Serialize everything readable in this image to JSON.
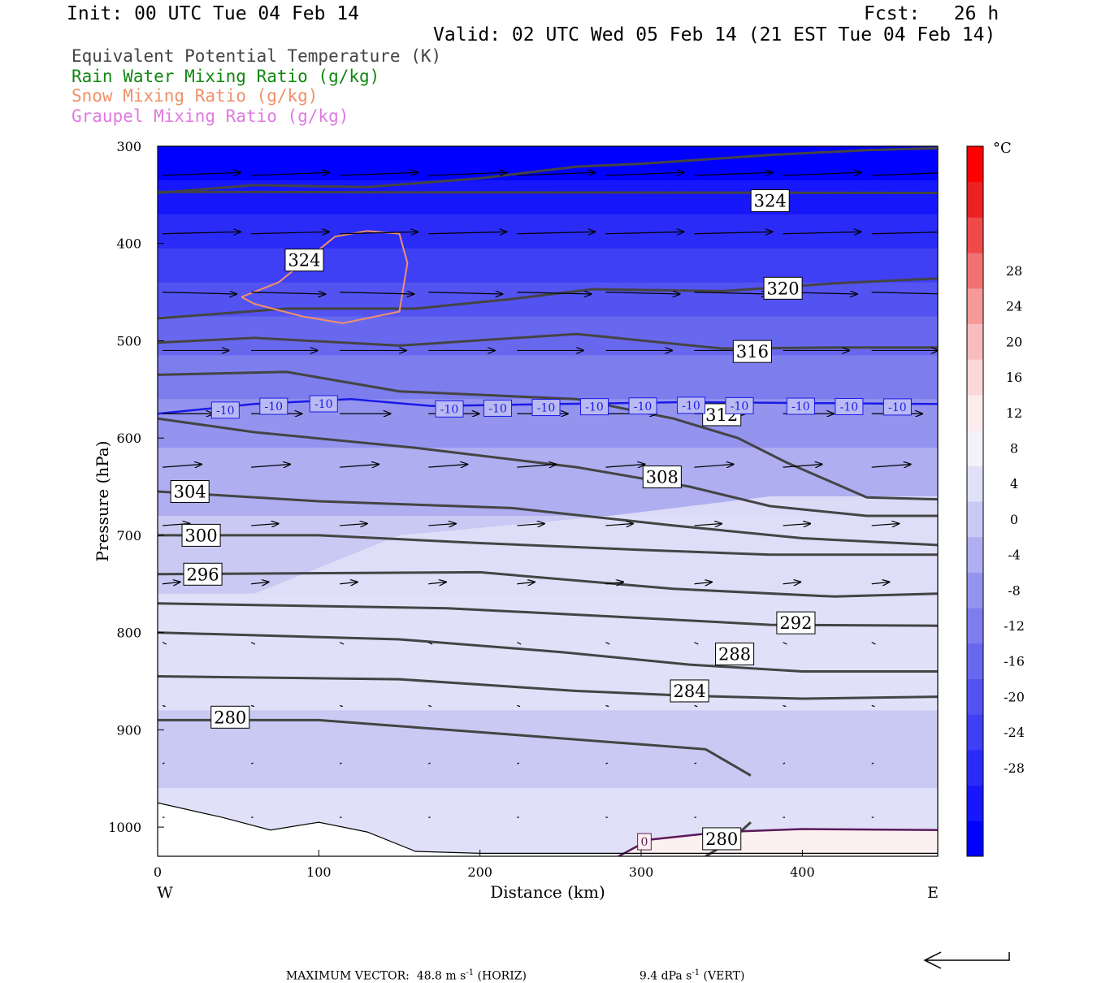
{
  "header": {
    "init": "Init: 00 UTC Tue 04 Feb 14",
    "fcst": "Fcst:   26 h",
    "valid": "Valid: 02 UTC Wed 05 Feb 14 (21 EST Tue 04 Feb 14)"
  },
  "legend": [
    {
      "label": "Equivalent Potential Temperature (K)",
      "color": "#444444"
    },
    {
      "label": "Rain Water Mixing Ratio (g/kg)",
      "color": "#118811"
    },
    {
      "label": "Snow Mixing Ratio (g/kg)",
      "color": "#f0906a"
    },
    {
      "label": "Graupel Mixing Ratio (g/kg)",
      "color": "#e07ae0"
    }
  ],
  "axes": {
    "ylabel": "Pressure (hPa)",
    "xlabel": "Distance (km)",
    "west": "W",
    "east": "E",
    "colorbar_unit": "°C"
  },
  "footer": {
    "max_vector": "MAXIMUM VECTOR:  48.8 m s",
    "horiz": " (HORIZ)",
    "vert_value": "9.4 dPa s",
    "vert": " (VERT)",
    "exp": "-1"
  },
  "chart_data": {
    "type": "cross-section",
    "x_unit": "km",
    "y_unit": "hPa",
    "xlim": [
      0,
      484
    ],
    "ylim": [
      1030,
      300
    ],
    "y_scale": "linear",
    "x_ticks": [
      0,
      100,
      200,
      300,
      400
    ],
    "y_ticks": [
      300,
      400,
      500,
      600,
      700,
      800,
      900,
      1000
    ],
    "temperature_fill": {
      "levels": [
        -32,
        -28,
        -24,
        -20,
        -16,
        -12,
        -8,
        -4,
        0,
        4,
        8,
        12,
        16,
        20,
        24,
        28,
        32
      ],
      "colorbar_ticks": [
        28,
        24,
        20,
        16,
        12,
        8,
        4,
        0,
        -4,
        -8,
        -12,
        -16,
        -20,
        -24,
        -28
      ],
      "colors": [
        "#0000ff",
        "#1717fb",
        "#2b2bf7",
        "#3f3ff4",
        "#5353f1",
        "#6868ef",
        "#7d7ded",
        "#9494ef",
        "#aeaef1",
        "#c9c9f4",
        "#e0e0f8",
        "#f2f2fb",
        "#fdecec",
        "#fbd8d8",
        "#f8bcbc",
        "#f59999",
        "#f27272",
        "#ee4a4a",
        "#eb2222",
        "#ff0000"
      ]
    },
    "theta_e_contours": [
      {
        "label": "324",
        "points": [
          [
            0,
            348
          ],
          [
            60,
            340
          ],
          [
            130,
            342
          ],
          [
            200,
            333
          ],
          [
            260,
            321
          ],
          [
            300,
            318
          ],
          [
            380,
            309
          ],
          [
            440,
            304
          ],
          [
            484,
            302
          ]
        ],
        "label_at": [
          91,
          417
        ]
      },
      {
        "label": "324",
        "points": [
          [
            0,
            347
          ],
          [
            484,
            348
          ]
        ],
        "label_at": [
          380,
          356
        ]
      },
      {
        "label": "320",
        "points": [
          [
            0,
            477
          ],
          [
            80,
            467
          ],
          [
            160,
            467
          ],
          [
            220,
            457
          ],
          [
            270,
            447
          ],
          [
            350,
            449
          ],
          [
            420,
            441
          ],
          [
            484,
            436
          ]
        ],
        "label_at": [
          388,
          446
        ]
      },
      {
        "label": "316",
        "points": [
          [
            0,
            502
          ],
          [
            60,
            497
          ],
          [
            150,
            505
          ],
          [
            260,
            493
          ],
          [
            350,
            508
          ],
          [
            420,
            507
          ],
          [
            484,
            507
          ]
        ],
        "label_at": [
          369,
          511
        ]
      },
      {
        "label": "312",
        "points": [
          [
            0,
            535
          ],
          [
            80,
            532
          ],
          [
            150,
            552
          ],
          [
            260,
            560
          ],
          [
            320,
            580
          ],
          [
            360,
            600
          ],
          [
            390,
            625
          ],
          [
            440,
            661
          ],
          [
            484,
            663
          ]
        ],
        "label_at": [
          350,
          576
        ]
      },
      {
        "label": "308",
        "points": [
          [
            0,
            580
          ],
          [
            60,
            594
          ],
          [
            160,
            610
          ],
          [
            260,
            630
          ],
          [
            330,
            650
          ],
          [
            380,
            670
          ],
          [
            440,
            680
          ],
          [
            484,
            680
          ]
        ],
        "label_at": [
          313,
          640
        ]
      },
      {
        "label": "304",
        "points": [
          [
            0,
            655
          ],
          [
            100,
            665
          ],
          [
            220,
            672
          ],
          [
            320,
            690
          ],
          [
            400,
            703
          ],
          [
            484,
            710
          ]
        ],
        "label_at": [
          20,
          655
        ]
      },
      {
        "label": "300",
        "points": [
          [
            0,
            700
          ],
          [
            100,
            700
          ],
          [
            200,
            708
          ],
          [
            300,
            715
          ],
          [
            380,
            720
          ],
          [
            484,
            720
          ]
        ],
        "label_at": [
          27,
          700
        ]
      },
      {
        "label": "296",
        "points": [
          [
            0,
            740
          ],
          [
            200,
            738
          ],
          [
            320,
            755
          ],
          [
            420,
            763
          ],
          [
            484,
            760
          ]
        ],
        "label_at": [
          28,
          740
        ]
      },
      {
        "label": "292",
        "points": [
          [
            0,
            770
          ],
          [
            180,
            775
          ],
          [
            300,
            785
          ],
          [
            380,
            792
          ],
          [
            484,
            793
          ]
        ],
        "label_at": [
          396,
          790
        ]
      },
      {
        "label": "288",
        "points": [
          [
            0,
            800
          ],
          [
            150,
            807
          ],
          [
            250,
            820
          ],
          [
            330,
            833
          ],
          [
            400,
            840
          ],
          [
            484,
            840
          ]
        ],
        "label_at": [
          358,
          822
        ]
      },
      {
        "label": "284",
        "points": [
          [
            0,
            845
          ],
          [
            150,
            848
          ],
          [
            260,
            860
          ],
          [
            330,
            865
          ],
          [
            400,
            868
          ],
          [
            484,
            866
          ]
        ],
        "label_at": [
          330,
          860
        ]
      },
      {
        "label": "280",
        "points": [
          [
            0,
            890
          ],
          [
            100,
            890
          ],
          [
            220,
            905
          ],
          [
            300,
            915
          ],
          [
            340,
            920
          ],
          [
            368,
            947
          ]
        ],
        "label_at": [
          45,
          887
        ]
      },
      {
        "label": "280",
        "points": [
          [
            340,
            1030
          ],
          [
            355,
            1015
          ],
          [
            368,
            995
          ]
        ],
        "label_at": [
          350,
          1012
        ]
      }
    ],
    "isotherm_minus10": {
      "label": "-10",
      "points": [
        [
          0,
          575
        ],
        [
          60,
          565
        ],
        [
          120,
          560
        ],
        [
          170,
          567
        ],
        [
          250,
          565
        ],
        [
          330,
          563
        ],
        [
          400,
          564
        ],
        [
          484,
          565
        ]
      ],
      "labels_x": [
        42,
        72,
        103,
        181,
        211,
        241,
        271,
        301,
        331,
        361,
        399,
        429,
        459
      ]
    },
    "isotherm_zero": {
      "label": "0",
      "points": [
        [
          286,
          1030
        ],
        [
          305,
          1013
        ],
        [
          350,
          1005
        ],
        [
          400,
          1002
        ],
        [
          484,
          1003
        ]
      ],
      "label_at": [
        302,
        1015
      ]
    },
    "surface_boundary": [
      [
        0,
        975
      ],
      [
        40,
        990
      ],
      [
        70,
        1003
      ],
      [
        100,
        995
      ],
      [
        130,
        1005
      ],
      [
        160,
        1025
      ],
      [
        200,
        1027
      ],
      [
        280,
        1027
      ],
      [
        484,
        1027
      ]
    ],
    "snow_contour": [
      [
        52,
        455
      ],
      [
        75,
        440
      ],
      [
        110,
        393
      ],
      [
        130,
        387
      ],
      [
        150,
        390
      ],
      [
        155,
        420
      ],
      [
        150,
        470
      ],
      [
        115,
        482
      ],
      [
        90,
        475
      ],
      [
        60,
        462
      ],
      [
        52,
        455
      ]
    ],
    "wind_vector_rows": [
      {
        "p": 330,
        "u": 4.0,
        "w": 0.15
      },
      {
        "p": 390,
        "u": 4.0,
        "w": 0.1
      },
      {
        "p": 450,
        "u": 3.8,
        "w": -0.1
      },
      {
        "p": 510,
        "u": 3.4,
        "w": 0.0
      },
      {
        "p": 575,
        "u": 2.6,
        "w": 0.0
      },
      {
        "p": 630,
        "u": 2.0,
        "w": 0.15
      },
      {
        "p": 690,
        "u": 1.4,
        "w": 0.1
      },
      {
        "p": 750,
        "u": 0.9,
        "w": 0.1
      },
      {
        "p": 810,
        "u": 0.2,
        "w": -0.1
      },
      {
        "p": 875,
        "u": 0.15,
        "w": -0.05
      },
      {
        "p": 935,
        "u": 0.1,
        "w": 0.05
      },
      {
        "p": 990,
        "u": 0.1,
        "w": 0.0
      }
    ]
  }
}
